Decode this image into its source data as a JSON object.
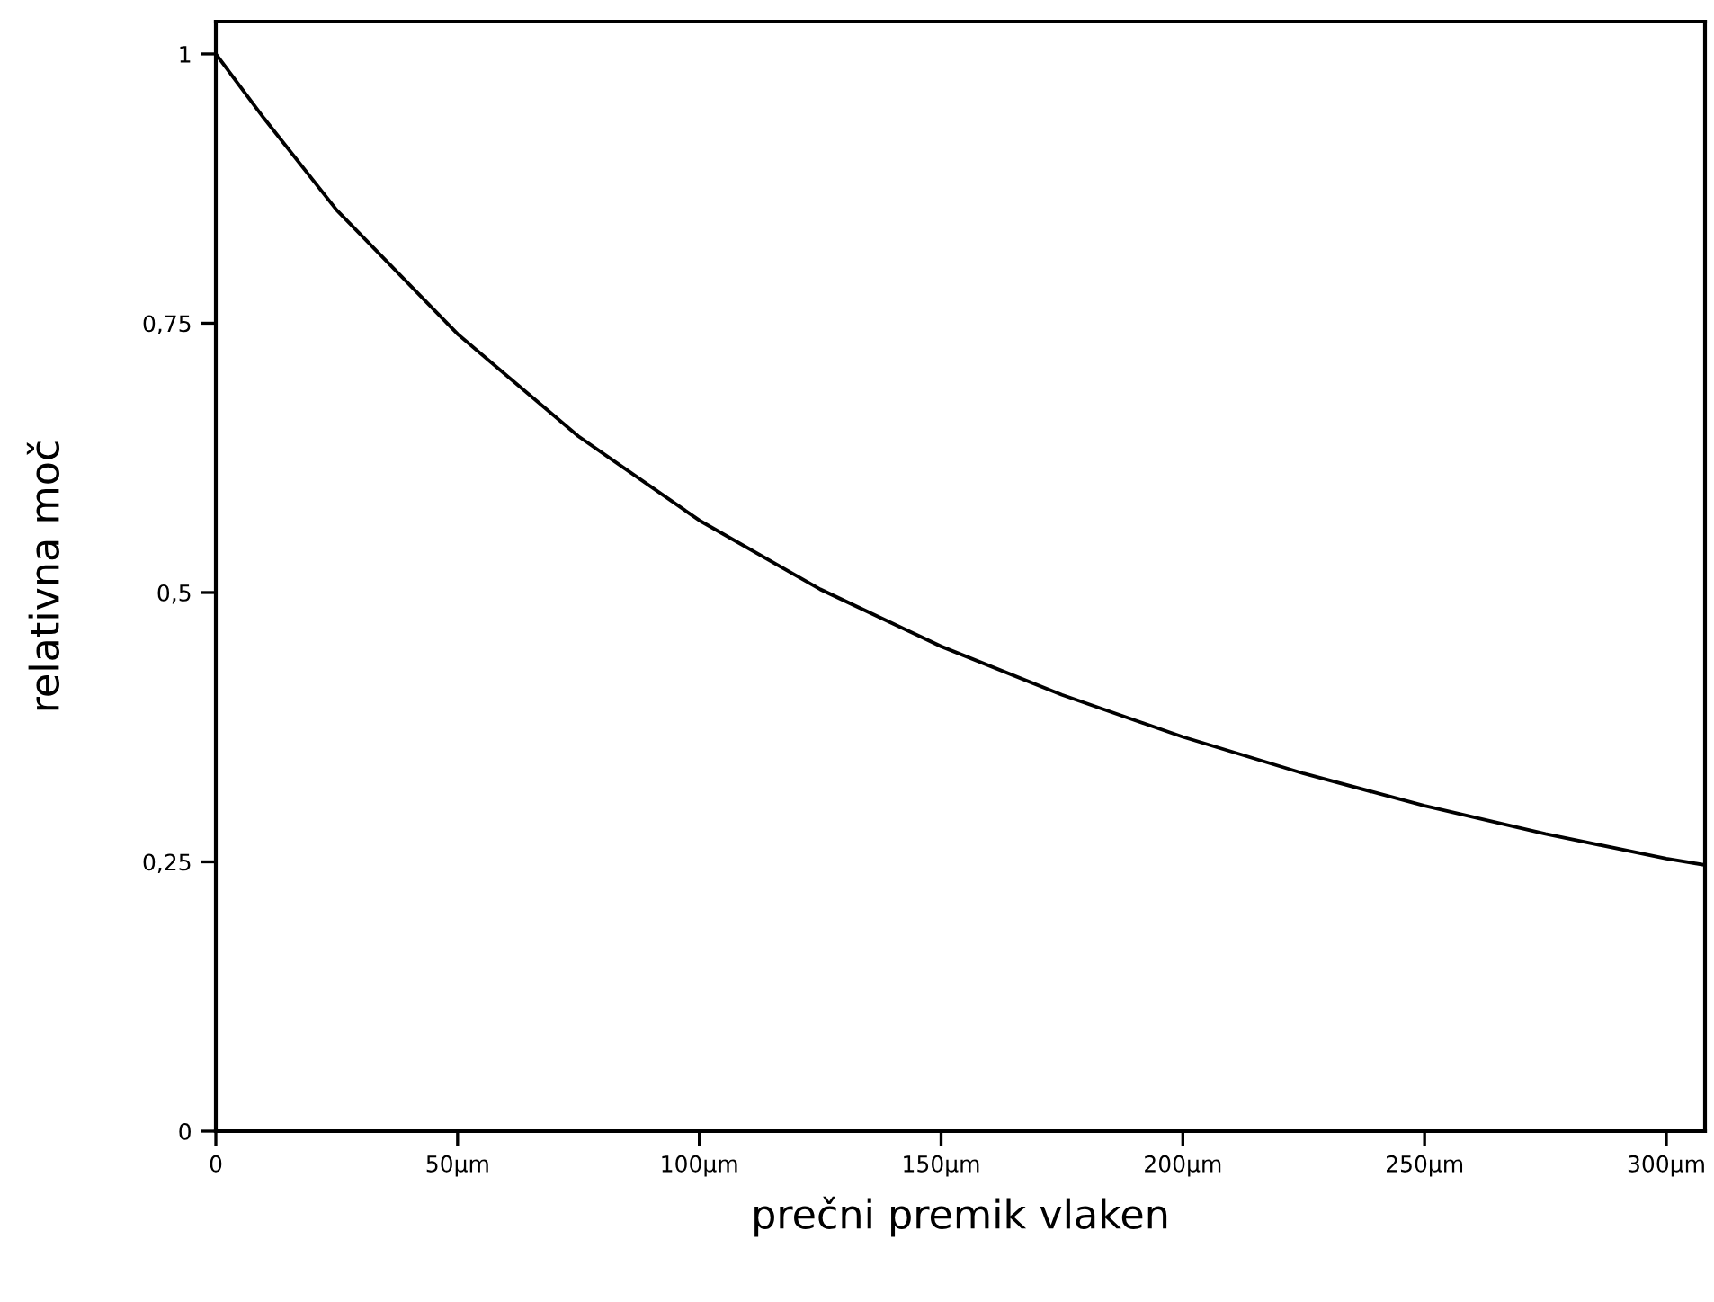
{
  "chart_data": {
    "type": "line",
    "xlabel": "prečni premik vlaken",
    "ylabel": "relativna moč",
    "x": [
      0,
      10,
      25,
      50,
      75,
      100,
      125,
      150,
      175,
      200,
      225,
      250,
      275,
      300,
      308
    ],
    "series": [
      {
        "color": "#000000",
        "values": [
          1.0,
          0.94,
          0.855,
          0.74,
          0.645,
          0.567,
          0.503,
          0.45,
          0.405,
          0.366,
          0.332,
          0.302,
          0.276,
          0.253,
          0.247
        ]
      }
    ],
    "xlim": [
      0,
      308
    ],
    "ylim": [
      0,
      1.03
    ],
    "xticks": [
      0,
      {
        "value": 50,
        "label": "50µm"
      },
      {
        "value": 100,
        "label": "100µm"
      },
      {
        "value": 150,
        "label": "150µm"
      },
      {
        "value": 200,
        "label": "200µm"
      },
      {
        "value": 250,
        "label": "250µm"
      },
      {
        "value": 300,
        "label": "300µm"
      }
    ],
    "yticks": [
      0,
      {
        "value": 0.25,
        "label": "0,25"
      },
      {
        "value": 0.5,
        "label": "0,5"
      },
      {
        "value": 0.75,
        "label": "0,75"
      },
      1
    ],
    "grid": false,
    "marker": "none",
    "line_style": "solid"
  }
}
